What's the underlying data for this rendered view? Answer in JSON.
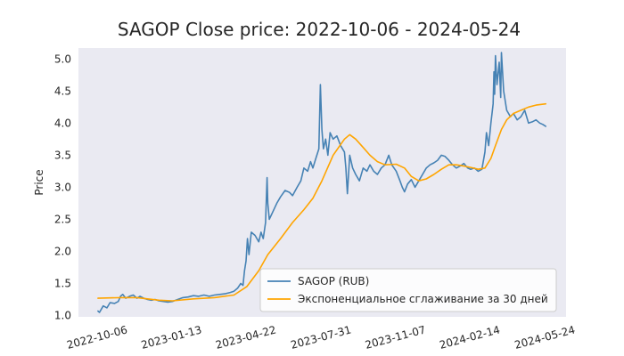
{
  "chart_data": {
    "type": "line",
    "title": "SAGOP Close price: 2022-10-06 - 2024-05-24",
    "xlabel": "",
    "ylabel": "Price",
    "x_axis_type": "date",
    "xlim": [
      "2022-09-10",
      "2024-06-20"
    ],
    "ylim": [
      0.98,
      5.17
    ],
    "x_ticks": [
      "2022-10-06",
      "2023-01-13",
      "2023-04-22",
      "2023-07-31",
      "2023-11-07",
      "2024-02-14",
      "2024-05-24"
    ],
    "y_ticks": [
      1.0,
      1.5,
      2.0,
      2.5,
      3.0,
      3.5,
      4.0,
      4.5,
      5.0
    ],
    "grid": false,
    "background": "#eaeaf2",
    "legend_position": "lower-right",
    "series": [
      {
        "name": "SAGOP (RUB)",
        "color": "#4682b4",
        "points": [
          [
            "2022-10-06",
            1.07
          ],
          [
            "2022-10-08",
            1.05
          ],
          [
            "2022-10-13",
            1.15
          ],
          [
            "2022-10-18",
            1.12
          ],
          [
            "2022-10-22",
            1.2
          ],
          [
            "2022-10-28",
            1.19
          ],
          [
            "2022-11-02",
            1.22
          ],
          [
            "2022-11-05",
            1.3
          ],
          [
            "2022-11-08",
            1.33
          ],
          [
            "2022-11-12",
            1.27
          ],
          [
            "2022-11-17",
            1.3
          ],
          [
            "2022-11-22",
            1.32
          ],
          [
            "2022-11-27",
            1.27
          ],
          [
            "2022-12-01",
            1.3
          ],
          [
            "2022-12-06",
            1.27
          ],
          [
            "2022-12-11",
            1.25
          ],
          [
            "2022-12-16",
            1.24
          ],
          [
            "2022-12-21",
            1.25
          ],
          [
            "2022-12-26",
            1.23
          ],
          [
            "2023-01-01",
            1.22
          ],
          [
            "2023-01-07",
            1.21
          ],
          [
            "2023-01-13",
            1.22
          ],
          [
            "2023-01-20",
            1.25
          ],
          [
            "2023-01-27",
            1.28
          ],
          [
            "2023-02-03",
            1.29
          ],
          [
            "2023-02-10",
            1.31
          ],
          [
            "2023-02-17",
            1.3
          ],
          [
            "2023-02-24",
            1.32
          ],
          [
            "2023-03-03",
            1.3
          ],
          [
            "2023-03-10",
            1.32
          ],
          [
            "2023-03-17",
            1.33
          ],
          [
            "2023-03-24",
            1.34
          ],
          [
            "2023-03-31",
            1.36
          ],
          [
            "2023-04-05",
            1.38
          ],
          [
            "2023-04-10",
            1.43
          ],
          [
            "2023-04-14",
            1.5
          ],
          [
            "2023-04-17",
            1.47
          ],
          [
            "2023-04-19",
            1.7
          ],
          [
            "2023-04-21",
            1.85
          ],
          [
            "2023-04-23",
            2.2
          ],
          [
            "2023-04-25",
            1.95
          ],
          [
            "2023-04-28",
            2.3
          ],
          [
            "2023-05-03",
            2.25
          ],
          [
            "2023-05-08",
            2.15
          ],
          [
            "2023-05-11",
            2.3
          ],
          [
            "2023-05-14",
            2.2
          ],
          [
            "2023-05-17",
            2.45
          ],
          [
            "2023-05-19",
            3.15
          ],
          [
            "2023-05-20",
            2.75
          ],
          [
            "2023-05-22",
            2.5
          ],
          [
            "2023-05-26",
            2.6
          ],
          [
            "2023-06-01",
            2.75
          ],
          [
            "2023-06-06",
            2.85
          ],
          [
            "2023-06-12",
            2.95
          ],
          [
            "2023-06-18",
            2.92
          ],
          [
            "2023-06-22",
            2.87
          ],
          [
            "2023-06-28",
            3.0
          ],
          [
            "2023-07-03",
            3.1
          ],
          [
            "2023-07-07",
            3.3
          ],
          [
            "2023-07-12",
            3.25
          ],
          [
            "2023-07-16",
            3.4
          ],
          [
            "2023-07-19",
            3.3
          ],
          [
            "2023-07-23",
            3.45
          ],
          [
            "2023-07-27",
            3.6
          ],
          [
            "2023-07-29",
            4.6
          ],
          [
            "2023-07-31",
            3.9
          ],
          [
            "2023-08-02",
            3.6
          ],
          [
            "2023-08-05",
            3.75
          ],
          [
            "2023-08-08",
            3.5
          ],
          [
            "2023-08-11",
            3.85
          ],
          [
            "2023-08-15",
            3.75
          ],
          [
            "2023-08-20",
            3.8
          ],
          [
            "2023-08-25",
            3.65
          ],
          [
            "2023-08-30",
            3.55
          ],
          [
            "2023-09-01",
            3.3
          ],
          [
            "2023-09-03",
            2.9
          ],
          [
            "2023-09-06",
            3.5
          ],
          [
            "2023-09-10",
            3.3
          ],
          [
            "2023-09-14",
            3.2
          ],
          [
            "2023-09-19",
            3.1
          ],
          [
            "2023-09-24",
            3.3
          ],
          [
            "2023-09-29",
            3.25
          ],
          [
            "2023-10-03",
            3.35
          ],
          [
            "2023-10-08",
            3.25
          ],
          [
            "2023-10-13",
            3.2
          ],
          [
            "2023-10-18",
            3.3
          ],
          [
            "2023-10-23",
            3.35
          ],
          [
            "2023-10-28",
            3.5
          ],
          [
            "2023-11-01",
            3.35
          ],
          [
            "2023-11-07",
            3.25
          ],
          [
            "2023-11-12",
            3.1
          ],
          [
            "2023-11-15",
            3.0
          ],
          [
            "2023-11-18",
            2.93
          ],
          [
            "2023-11-22",
            3.05
          ],
          [
            "2023-11-27",
            3.12
          ],
          [
            "2023-12-02",
            3.0
          ],
          [
            "2023-12-07",
            3.1
          ],
          [
            "2023-12-12",
            3.2
          ],
          [
            "2023-12-17",
            3.3
          ],
          [
            "2023-12-22",
            3.35
          ],
          [
            "2023-12-27",
            3.38
          ],
          [
            "2024-01-01",
            3.42
          ],
          [
            "2024-01-06",
            3.5
          ],
          [
            "2024-01-11",
            3.48
          ],
          [
            "2024-01-16",
            3.42
          ],
          [
            "2024-01-21",
            3.35
          ],
          [
            "2024-01-26",
            3.3
          ],
          [
            "2024-01-31",
            3.33
          ],
          [
            "2024-02-05",
            3.37
          ],
          [
            "2024-02-10",
            3.3
          ],
          [
            "2024-02-14",
            3.28
          ],
          [
            "2024-02-19",
            3.3
          ],
          [
            "2024-02-24",
            3.25
          ],
          [
            "2024-02-29",
            3.28
          ],
          [
            "2024-03-04",
            3.55
          ],
          [
            "2024-03-06",
            3.85
          ],
          [
            "2024-03-09",
            3.65
          ],
          [
            "2024-03-12",
            4.0
          ],
          [
            "2024-03-15",
            4.3
          ],
          [
            "2024-03-16",
            4.8
          ],
          [
            "2024-03-17",
            4.45
          ],
          [
            "2024-03-18",
            5.05
          ],
          [
            "2024-03-20",
            4.6
          ],
          [
            "2024-03-23",
            4.95
          ],
          [
            "2024-03-25",
            4.4
          ],
          [
            "2024-03-26",
            5.1
          ],
          [
            "2024-03-29",
            4.5
          ],
          [
            "2024-04-02",
            4.2
          ],
          [
            "2024-04-07",
            4.1
          ],
          [
            "2024-04-11",
            4.15
          ],
          [
            "2024-04-16",
            4.05
          ],
          [
            "2024-04-21",
            4.1
          ],
          [
            "2024-04-26",
            4.2
          ],
          [
            "2024-05-01",
            4.0
          ],
          [
            "2024-05-06",
            4.02
          ],
          [
            "2024-05-11",
            4.05
          ],
          [
            "2024-05-16",
            4.0
          ],
          [
            "2024-05-20",
            3.98
          ],
          [
            "2024-05-24",
            3.95
          ]
        ]
      },
      {
        "name": "Экспоненциальное сглаживание за 30 дней",
        "color": "#ffa500",
        "points": [
          [
            "2022-10-06",
            1.27
          ],
          [
            "2022-11-05",
            1.28
          ],
          [
            "2022-11-27",
            1.28
          ],
          [
            "2022-12-26",
            1.24
          ],
          [
            "2023-01-13",
            1.23
          ],
          [
            "2023-02-10",
            1.26
          ],
          [
            "2023-03-10",
            1.28
          ],
          [
            "2023-04-05",
            1.32
          ],
          [
            "2023-04-22",
            1.45
          ],
          [
            "2023-05-08",
            1.7
          ],
          [
            "2023-05-20",
            1.95
          ],
          [
            "2023-06-06",
            2.2
          ],
          [
            "2023-06-22",
            2.45
          ],
          [
            "2023-07-07",
            2.65
          ],
          [
            "2023-07-19",
            2.83
          ],
          [
            "2023-07-31",
            3.1
          ],
          [
            "2023-08-15",
            3.5
          ],
          [
            "2023-08-30",
            3.75
          ],
          [
            "2023-09-06",
            3.82
          ],
          [
            "2023-09-14",
            3.75
          ],
          [
            "2023-09-24",
            3.62
          ],
          [
            "2023-10-03",
            3.5
          ],
          [
            "2023-10-13",
            3.4
          ],
          [
            "2023-10-23",
            3.35
          ],
          [
            "2023-11-07",
            3.36
          ],
          [
            "2023-11-18",
            3.3
          ],
          [
            "2023-11-27",
            3.17
          ],
          [
            "2023-12-07",
            3.1
          ],
          [
            "2023-12-17",
            3.13
          ],
          [
            "2023-12-27",
            3.2
          ],
          [
            "2024-01-06",
            3.28
          ],
          [
            "2024-01-16",
            3.35
          ],
          [
            "2024-01-26",
            3.35
          ],
          [
            "2024-02-05",
            3.33
          ],
          [
            "2024-02-14",
            3.31
          ],
          [
            "2024-02-24",
            3.28
          ],
          [
            "2024-03-04",
            3.3
          ],
          [
            "2024-03-12",
            3.45
          ],
          [
            "2024-03-18",
            3.65
          ],
          [
            "2024-03-26",
            3.9
          ],
          [
            "2024-04-02",
            4.05
          ],
          [
            "2024-04-11",
            4.15
          ],
          [
            "2024-04-21",
            4.2
          ],
          [
            "2024-05-01",
            4.25
          ],
          [
            "2024-05-11",
            4.28
          ],
          [
            "2024-05-24",
            4.3
          ]
        ]
      }
    ]
  }
}
